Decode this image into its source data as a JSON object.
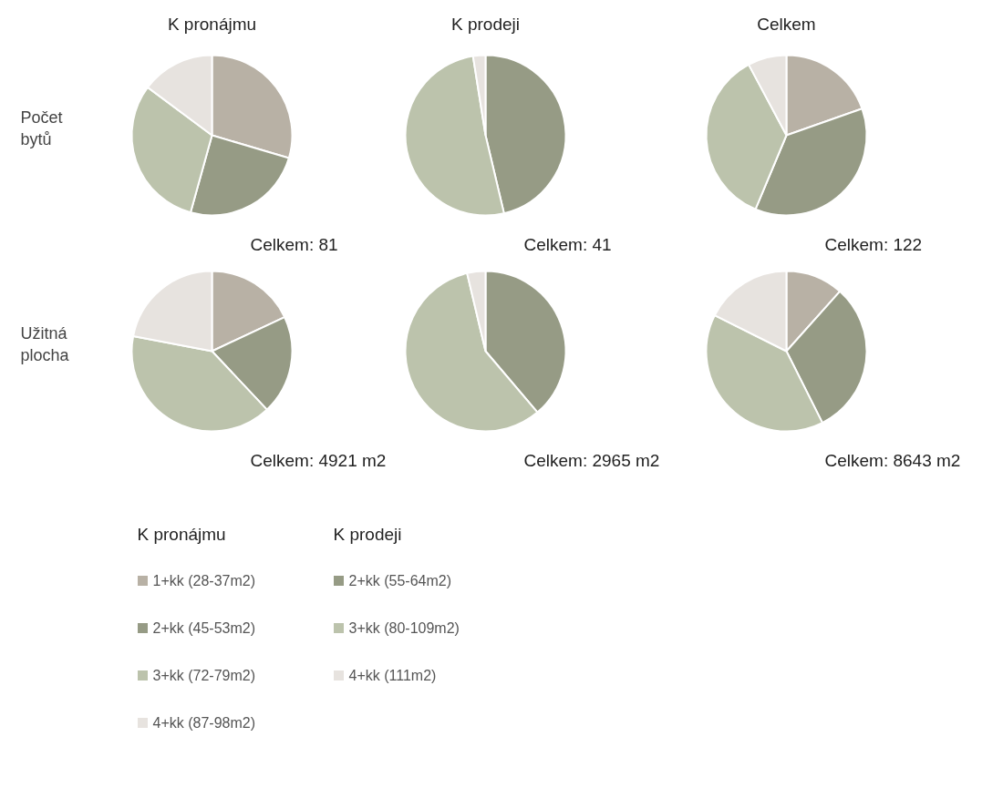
{
  "chart_data": [
    {
      "type": "pie",
      "title": "K pronájmu",
      "ylabel": "Počet bytů",
      "categories": [
        "1+kk (28-37m2)",
        "2+kk (45-53m2)",
        "3+kk (72-79m2)",
        "4+kk (87-98m2)"
      ],
      "values": [
        29.6,
        24.7,
        30.9,
        14.8
      ],
      "colors": [
        "#b8b1a5",
        "#969b85",
        "#bcc3ac",
        "#e7e3df"
      ],
      "annotations": [
        "Celkem: 81"
      ],
      "legend": "bottom",
      "legend_title": "K pronájmu"
    },
    {
      "type": "pie",
      "title": "K prodeji",
      "categories": [
        "2+kk (55-64m2)",
        "3+kk (80-109m2)",
        "4+kk (111m2)"
      ],
      "values": [
        46.3,
        51.2,
        2.5
      ],
      "colors": [
        "#969b85",
        "#bcc3ac",
        "#e7e3df"
      ],
      "annotations": [
        "Celkem: 41"
      ],
      "legend": "bottom",
      "legend_title": "K prodeji"
    },
    {
      "type": "pie",
      "title": "Celkem",
      "categories": [
        null,
        null,
        null,
        null
      ],
      "values": [
        19.6,
        36.7,
        35.9,
        7.8
      ],
      "colors": [
        "#b8b1a5",
        "#969b85",
        "#bcc3ac",
        "#e7e3df"
      ],
      "annotations": [
        "Celkem: 122"
      ]
    },
    {
      "type": "pie",
      "ylabel": "Užitná plocha",
      "categories": [
        null,
        null,
        null,
        null
      ],
      "values": [
        18,
        20,
        40,
        22
      ],
      "colors": [
        "#b8b1a5",
        "#969b85",
        "#bcc3ac",
        "#e7e3df"
      ],
      "annotations": [
        "Celkem: 4921 m2"
      ]
    },
    {
      "type": "pie",
      "categories": [
        null,
        null,
        null
      ],
      "values": [
        38.8,
        57.5,
        3.7
      ],
      "colors": [
        "#969b85",
        "#bcc3ac",
        "#e7e3df"
      ],
      "annotations": [
        "Celkem: 2965 m2"
      ]
    },
    {
      "type": "pie",
      "categories": [
        null,
        null,
        null,
        null
      ],
      "values": [
        11.6,
        31,
        39.8,
        17.6
      ],
      "colors": [
        "#b8b1a5",
        "#969b85",
        "#bcc3ac",
        "#e7e3df"
      ],
      "annotations": [
        "Celkem: 8643 m2"
      ]
    }
  ]
}
